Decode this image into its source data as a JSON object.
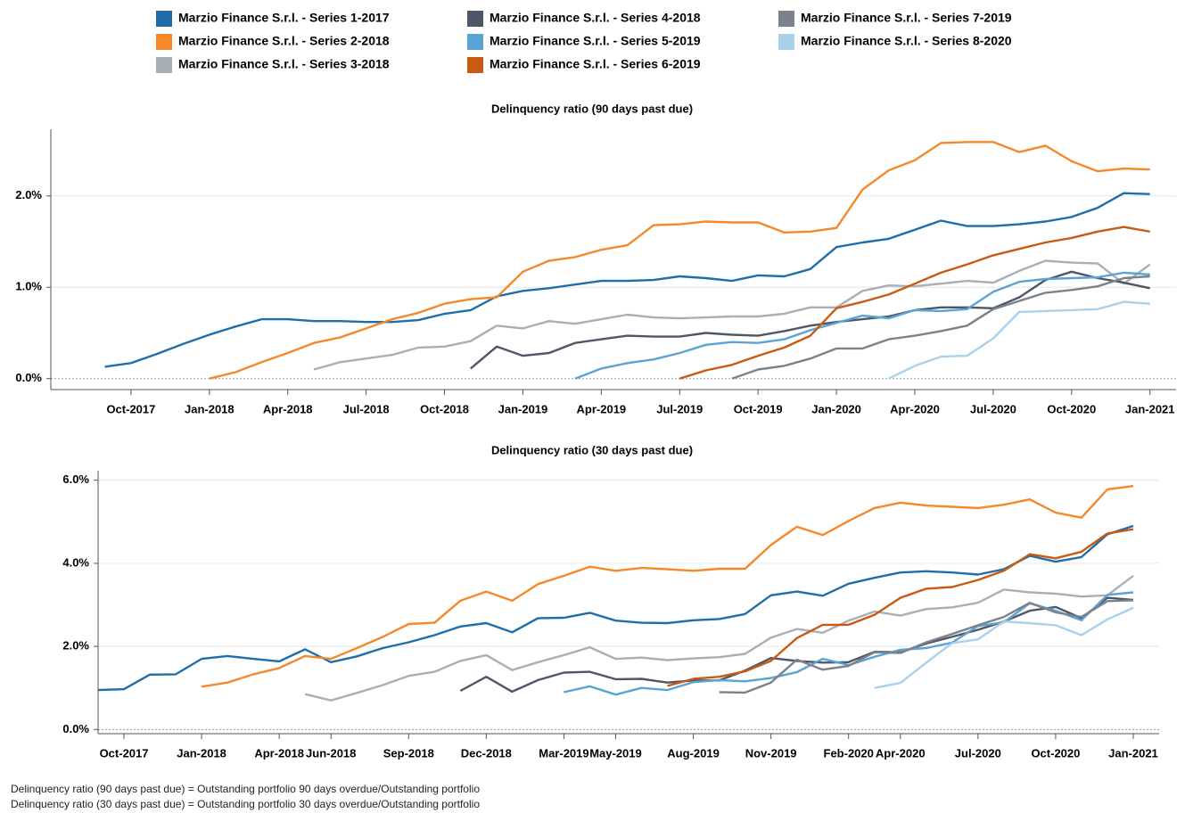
{
  "chart_data": [
    {
      "type": "line",
      "title": "Delinquency ratio (90 days past due)",
      "legend": "top",
      "grid": true,
      "x": [
        "2017-09",
        "2017-10",
        "2017-11",
        "2017-12",
        "2018-01",
        "2018-02",
        "2018-03",
        "2018-04",
        "2018-05",
        "2018-06",
        "2018-07",
        "2018-08",
        "2018-09",
        "2018-10",
        "2018-11",
        "2018-12",
        "2019-01",
        "2019-02",
        "2019-03",
        "2019-04",
        "2019-05",
        "2019-06",
        "2019-07",
        "2019-08",
        "2019-09",
        "2019-10",
        "2019-11",
        "2019-12",
        "2020-01",
        "2020-02",
        "2020-03",
        "2020-04",
        "2020-05",
        "2020-06",
        "2020-07",
        "2020-08",
        "2020-09",
        "2020-10",
        "2020-11",
        "2020-12",
        "2021-01"
      ],
      "xlim": [
        "2017-07",
        "2021-02"
      ],
      "xticks": [
        {
          "value": "2017-10",
          "label": "Oct-2017"
        },
        {
          "value": "2018-01",
          "label": "Jan-2018"
        },
        {
          "value": "2018-04",
          "label": "Apr-2018"
        },
        {
          "value": "2018-07",
          "label": "Jul-2018"
        },
        {
          "value": "2018-10",
          "label": "Oct-2018"
        },
        {
          "value": "2019-01",
          "label": "Jan-2019"
        },
        {
          "value": "2019-04",
          "label": "Apr-2019"
        },
        {
          "value": "2019-07",
          "label": "Jul-2019"
        },
        {
          "value": "2019-10",
          "label": "Oct-2019"
        },
        {
          "value": "2020-01",
          "label": "Jan-2020"
        },
        {
          "value": "2020-04",
          "label": "Apr-2020"
        },
        {
          "value": "2020-07",
          "label": "Jul-2020"
        },
        {
          "value": "2020-10",
          "label": "Oct-2020"
        },
        {
          "value": "2021-01",
          "label": "Jan-2021"
        }
      ],
      "ylim": [
        -0.12,
        2.73
      ],
      "yticks": [
        {
          "value": 0,
          "label": "0.0%"
        },
        {
          "value": 1,
          "label": "1.0%"
        },
        {
          "value": 2,
          "label": "2.0%"
        }
      ],
      "series": [
        {
          "name": "Marzio Finance S.r.l. - Series 1-2017",
          "color": "#1f6ea8",
          "values": [
            0.13,
            0.17,
            0.27,
            0.38,
            0.48,
            0.57,
            0.65,
            0.65,
            0.63,
            0.63,
            0.62,
            0.62,
            0.64,
            0.71,
            0.75,
            0.9,
            0.96,
            0.99,
            1.03,
            1.07,
            1.07,
            1.08,
            1.12,
            1.1,
            1.07,
            1.13,
            1.12,
            1.2,
            1.44,
            1.49,
            1.53,
            1.63,
            1.73,
            1.67,
            1.67,
            1.69,
            1.72,
            1.77,
            1.87,
            2.03,
            2.02
          ]
        },
        {
          "name": "Marzio Finance S.r.l. - Series 2-2018",
          "color": "#f5892a",
          "values": [
            null,
            null,
            null,
            null,
            0,
            0.07,
            0.18,
            0.28,
            0.39,
            0.45,
            0.55,
            0.65,
            0.72,
            0.82,
            0.87,
            0.89,
            1.17,
            1.29,
            1.33,
            1.41,
            1.46,
            1.68,
            1.69,
            1.72,
            1.71,
            1.71,
            1.6,
            1.61,
            1.65,
            2.07,
            2.28,
            2.39,
            2.58,
            2.59,
            2.59,
            2.48,
            2.55,
            2.38,
            2.27,
            2.3,
            2.29
          ]
        },
        {
          "name": "Marzio Finance S.r.l. - Series 3-2018",
          "color": "#a9afb9",
          "values": [
            null,
            null,
            null,
            null,
            null,
            null,
            null,
            null,
            0.1,
            0.18,
            0.22,
            0.26,
            0.34,
            0.35,
            0.41,
            0.58,
            0.55,
            0.63,
            0.6,
            0.65,
            0.7,
            0.67,
            0.66,
            0.67,
            0.68,
            0.68,
            0.71,
            0.78,
            0.78,
            0.96,
            1.02,
            1.01,
            1.04,
            1.07,
            1.05,
            1.18,
            1.29,
            1.27,
            1.26,
            1.04,
            1.25
          ]
        },
        {
          "name": "Marzio Finance S.r.l. - Series 4-2018",
          "color": "#4f5766",
          "values": [
            null,
            null,
            null,
            null,
            null,
            null,
            null,
            null,
            null,
            null,
            null,
            null,
            null,
            null,
            0.11,
            0.35,
            0.25,
            0.28,
            0.39,
            0.43,
            0.47,
            0.46,
            0.46,
            0.5,
            0.48,
            0.47,
            0.52,
            0.58,
            0.62,
            0.65,
            0.68,
            0.75,
            0.78,
            0.78,
            0.77,
            0.89,
            1.08,
            1.17,
            1.1,
            1.05,
            0.99
          ]
        },
        {
          "name": "Marzio Finance S.r.l. - Series 5-2019",
          "color": "#5ba3d5",
          "values": [
            null,
            null,
            null,
            null,
            null,
            null,
            null,
            null,
            null,
            null,
            null,
            null,
            null,
            null,
            null,
            null,
            null,
            null,
            0,
            0.11,
            0.17,
            0.21,
            0.28,
            0.37,
            0.4,
            0.39,
            0.43,
            0.53,
            0.61,
            0.69,
            0.66,
            0.75,
            0.74,
            0.76,
            0.95,
            1.06,
            1.09,
            1.1,
            1.11,
            1.16,
            1.14
          ]
        },
        {
          "name": "Marzio Finance S.r.l. - Series 6-2019",
          "color": "#c85a12",
          "values": [
            null,
            null,
            null,
            null,
            null,
            null,
            null,
            null,
            null,
            null,
            null,
            null,
            null,
            null,
            null,
            null,
            null,
            null,
            null,
            null,
            null,
            null,
            0,
            0.09,
            0.15,
            0.25,
            0.34,
            0.47,
            0.77,
            0.84,
            0.92,
            1.04,
            1.16,
            1.25,
            1.35,
            1.42,
            1.49,
            1.54,
            1.61,
            1.66,
            1.61
          ]
        },
        {
          "name": "Marzio Finance S.r.l. - Series 7-2019",
          "color": "#7b828d",
          "values": [
            null,
            null,
            null,
            null,
            null,
            null,
            null,
            null,
            null,
            null,
            null,
            null,
            null,
            null,
            null,
            null,
            null,
            null,
            null,
            null,
            null,
            null,
            null,
            null,
            0,
            0.1,
            0.14,
            0.22,
            0.33,
            0.33,
            0.43,
            0.47,
            0.52,
            0.58,
            0.76,
            0.85,
            0.94,
            0.97,
            1.01,
            1.1,
            1.12
          ]
        },
        {
          "name": "Marzio Finance S.r.l. - Series 8-2020",
          "color": "#a9d1ec",
          "values": [
            null,
            null,
            null,
            null,
            null,
            null,
            null,
            null,
            null,
            null,
            null,
            null,
            null,
            null,
            null,
            null,
            null,
            null,
            null,
            null,
            null,
            null,
            null,
            null,
            null,
            null,
            null,
            null,
            null,
            null,
            0,
            0.14,
            0.24,
            0.25,
            0.44,
            0.73,
            0.74,
            0.75,
            0.76,
            0.84,
            0.82
          ]
        }
      ]
    },
    {
      "type": "line",
      "title": "Delinquency ratio (30 days past due)",
      "grid": true,
      "x": [
        "2017-09",
        "2017-10",
        "2017-11",
        "2017-12",
        "2018-01",
        "2018-02",
        "2018-03",
        "2018-04",
        "2018-05",
        "2018-06",
        "2018-07",
        "2018-08",
        "2018-09",
        "2018-10",
        "2018-11",
        "2018-12",
        "2019-01",
        "2019-02",
        "2019-03",
        "2019-04",
        "2019-05",
        "2019-06",
        "2019-07",
        "2019-08",
        "2019-09",
        "2019-10",
        "2019-11",
        "2019-12",
        "2020-01",
        "2020-02",
        "2020-03",
        "2020-04",
        "2020-05",
        "2020-06",
        "2020-07",
        "2020-08",
        "2020-09",
        "2020-10",
        "2020-11",
        "2020-12",
        "2021-01"
      ],
      "xlim": [
        "2017-09",
        "2021-02"
      ],
      "xticks": [
        {
          "value": "2017-10",
          "label": "Oct-2017"
        },
        {
          "value": "2018-01",
          "label": "Jan-2018"
        },
        {
          "value": "2018-04",
          "label": "Apr-2018"
        },
        {
          "value": "2018-06",
          "label": "Jun-2018"
        },
        {
          "value": "2018-09",
          "label": "Sep-2018"
        },
        {
          "value": "2018-12",
          "label": "Dec-2018"
        },
        {
          "value": "2019-03",
          "label": "Mar-2019"
        },
        {
          "value": "2019-05",
          "label": "May-2019"
        },
        {
          "value": "2019-08",
          "label": "Aug-2019"
        },
        {
          "value": "2019-11",
          "label": "Nov-2019"
        },
        {
          "value": "2020-02",
          "label": "Feb-2020"
        },
        {
          "value": "2020-04",
          "label": "Apr-2020"
        },
        {
          "value": "2020-07",
          "label": "Jul-2020"
        },
        {
          "value": "2020-10",
          "label": "Oct-2020"
        },
        {
          "value": "2021-01",
          "label": "Jan-2021"
        }
      ],
      "ylim": [
        -0.1,
        6.23
      ],
      "yticks": [
        {
          "value": 0,
          "label": "0.0%"
        },
        {
          "value": 2,
          "label": "2.0%"
        },
        {
          "value": 4,
          "label": "4.0%"
        },
        {
          "value": 6,
          "label": "6.0%"
        }
      ],
      "series": [
        {
          "color": "#1f6ea8",
          "values": [
            0.95,
            0.97,
            1.32,
            1.33,
            1.7,
            1.77,
            1.7,
            1.64,
            1.93,
            1.62,
            1.76,
            1.96,
            2.1,
            2.27,
            2.48,
            2.56,
            2.34,
            2.68,
            2.69,
            2.81,
            2.62,
            2.57,
            2.56,
            2.63,
            2.66,
            2.78,
            3.23,
            3.32,
            3.22,
            3.51,
            3.65,
            3.78,
            3.81,
            3.78,
            3.73,
            3.86,
            4.18,
            4.04,
            4.15,
            4.7,
            4.9
          ]
        },
        {
          "color": "#f5892a",
          "values": [
            null,
            null,
            null,
            null,
            1.03,
            1.13,
            1.33,
            1.48,
            1.77,
            1.7,
            1.96,
            2.23,
            2.54,
            2.57,
            3.1,
            3.32,
            3.1,
            3.5,
            3.7,
            3.92,
            3.82,
            3.89,
            3.86,
            3.82,
            3.87,
            3.87,
            4.44,
            4.88,
            4.68,
            5.02,
            5.33,
            5.46,
            5.39,
            5.36,
            5.33,
            5.41,
            5.54,
            5.22,
            5.1,
            5.78,
            5.86
          ]
        },
        {
          "color": "#a9afb9",
          "values": [
            null,
            null,
            null,
            null,
            null,
            null,
            null,
            null,
            0.85,
            0.7,
            0.88,
            1.07,
            1.29,
            1.39,
            1.65,
            1.79,
            1.43,
            1.62,
            1.79,
            1.98,
            1.7,
            1.73,
            1.67,
            1.71,
            1.74,
            1.82,
            2.21,
            2.42,
            2.33,
            2.62,
            2.84,
            2.74,
            2.9,
            2.94,
            3.05,
            3.37,
            3.3,
            3.27,
            3.2,
            3.23,
            3.7
          ]
        },
        {
          "color": "#4f5766",
          "values": [
            null,
            null,
            null,
            null,
            null,
            null,
            null,
            null,
            null,
            null,
            null,
            null,
            null,
            null,
            0.93,
            1.27,
            0.91,
            1.19,
            1.37,
            1.39,
            1.21,
            1.22,
            1.13,
            1.18,
            1.18,
            1.42,
            1.72,
            1.65,
            1.61,
            1.62,
            1.87,
            1.86,
            2.07,
            2.23,
            2.4,
            2.6,
            2.86,
            2.95,
            2.68,
            3.17,
            3.12
          ]
        },
        {
          "color": "#5ba3d5",
          "values": [
            null,
            null,
            null,
            null,
            null,
            null,
            null,
            null,
            null,
            null,
            null,
            null,
            null,
            null,
            null,
            null,
            null,
            null,
            0.9,
            1.04,
            0.84,
            1.0,
            0.95,
            1.14,
            1.19,
            1.16,
            1.24,
            1.38,
            1.7,
            1.55,
            1.75,
            1.92,
            1.96,
            2.09,
            2.49,
            2.58,
            3.04,
            2.86,
            2.63,
            3.24,
            3.3
          ]
        },
        {
          "color": "#c85a12",
          "values": [
            null,
            null,
            null,
            null,
            null,
            null,
            null,
            null,
            null,
            null,
            null,
            null,
            null,
            null,
            null,
            null,
            null,
            null,
            null,
            null,
            null,
            null,
            1.05,
            1.22,
            1.27,
            1.4,
            1.65,
            2.2,
            2.52,
            2.52,
            2.76,
            3.17,
            3.39,
            3.43,
            3.6,
            3.82,
            4.22,
            4.12,
            4.28,
            4.72,
            4.82
          ]
        },
        {
          "color": "#7b828d",
          "values": [
            null,
            null,
            null,
            null,
            null,
            null,
            null,
            null,
            null,
            null,
            null,
            null,
            null,
            null,
            null,
            null,
            null,
            null,
            null,
            null,
            null,
            null,
            null,
            null,
            0.9,
            0.89,
            1.13,
            1.68,
            1.44,
            1.53,
            1.86,
            1.84,
            2.1,
            2.3,
            2.51,
            2.71,
            3.05,
            2.82,
            2.71,
            3.09,
            3.11
          ]
        },
        {
          "color": "#a9d1ec",
          "values": [
            null,
            null,
            null,
            null,
            null,
            null,
            null,
            null,
            null,
            null,
            null,
            null,
            null,
            null,
            null,
            null,
            null,
            null,
            null,
            null,
            null,
            null,
            null,
            null,
            null,
            null,
            null,
            null,
            null,
            null,
            1.0,
            1.12,
            1.61,
            2.08,
            2.17,
            2.6,
            2.56,
            2.51,
            2.27,
            2.65,
            2.93
          ]
        }
      ]
    }
  ],
  "footnotes": [
    "Delinquency ratio (90 days past due) = Outstanding portfolio 90 days overdue/Outstanding portfolio",
    "Delinquency ratio (30 days past due) = Outstanding portfolio 30 days overdue/Outstanding portfolio"
  ]
}
